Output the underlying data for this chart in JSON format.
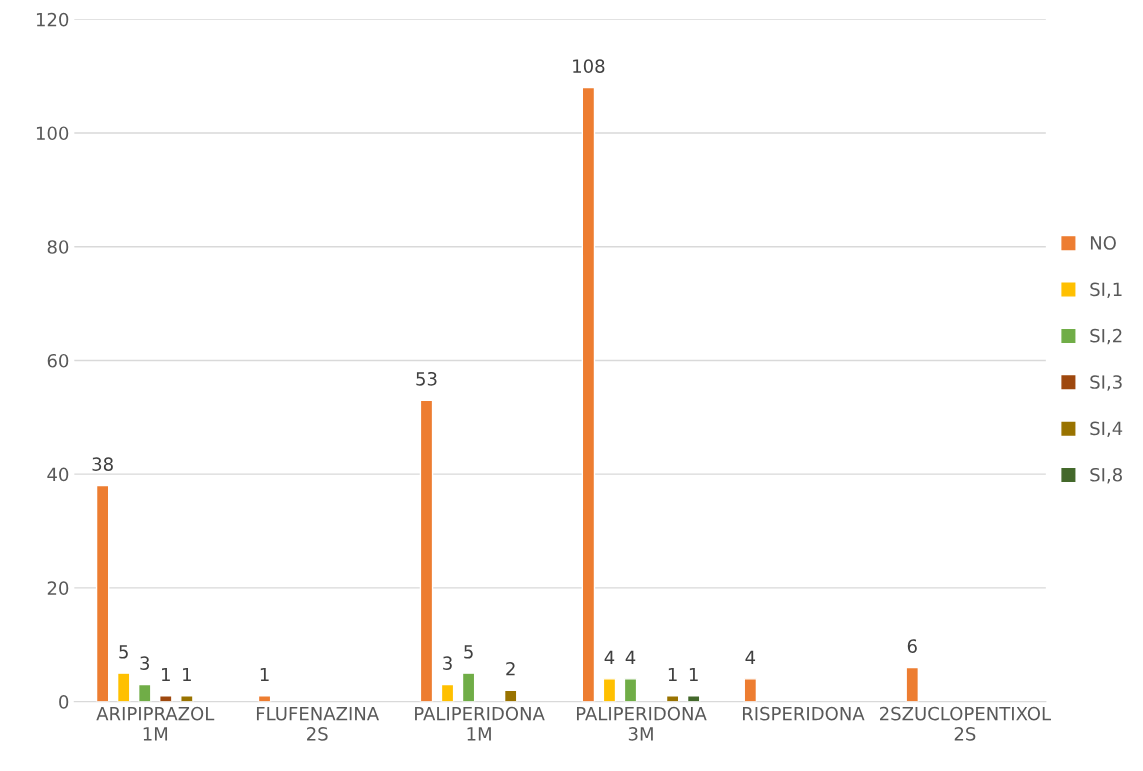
{
  "chart_data": {
    "type": "bar",
    "categories": [
      "ARIPIPRAZOL\n1M",
      "FLUFENAZINA\n2S",
      "PALIPERIDONA\n1M",
      "PALIPERIDONA\n3M",
      "RISPERIDONA",
      "2SZUCLOPENTIXOL\n2S"
    ],
    "series": [
      {
        "name": "NO",
        "color": "#ed7d31",
        "values": [
          38,
          1,
          53,
          108,
          4,
          6
        ]
      },
      {
        "name": "SI,1",
        "color": "#ffc000",
        "values": [
          5,
          null,
          3,
          4,
          null,
          null
        ]
      },
      {
        "name": "SI,2",
        "color": "#70ad47",
        "values": [
          3,
          null,
          5,
          4,
          null,
          null
        ]
      },
      {
        "name": "SI,3",
        "color": "#9e480e",
        "values": [
          1,
          null,
          null,
          null,
          null,
          null
        ]
      },
      {
        "name": "SI,4",
        "color": "#997300",
        "values": [
          1,
          null,
          2,
          1,
          null,
          null
        ]
      },
      {
        "name": "SI,8",
        "color": "#43682b",
        "values": [
          null,
          null,
          null,
          1,
          null,
          null
        ]
      }
    ],
    "ylim": [
      0,
      120
    ],
    "yticks": [
      0,
      20,
      40,
      60,
      80,
      100,
      120
    ],
    "grid": "y",
    "legend": "right",
    "data_labels": true
  }
}
